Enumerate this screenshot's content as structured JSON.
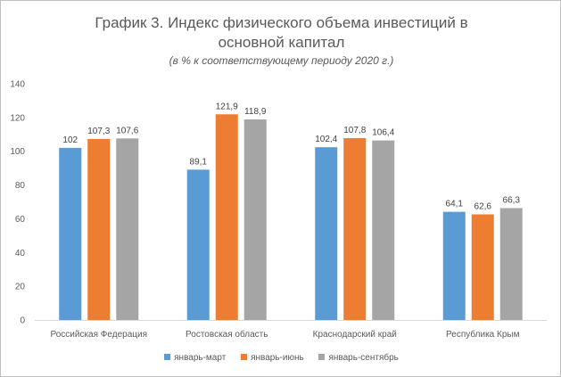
{
  "chart_data": {
    "type": "bar",
    "title_line1": "График 3. Индекс физического объема инвестиций в",
    "title_line2": "основной капитал",
    "subtitle": "(в % к соответствующему периоду 2020 г.)",
    "xlabel": "",
    "ylabel": "",
    "ylim": [
      0,
      140
    ],
    "yticks": [
      "0",
      "20",
      "40",
      "60",
      "80",
      "100",
      "120",
      "140"
    ],
    "grid": false,
    "legend_position": "bottom",
    "categories": [
      "Российская Федерация",
      "Ростовская область",
      "Краснодарский край",
      "Республика Крым"
    ],
    "series": [
      {
        "name": "январь-март",
        "color": "#5b9bd5",
        "values": [
          102,
          89.1,
          102.4,
          64.1
        ],
        "labels": [
          "102",
          "89,1",
          "102,4",
          "64,1"
        ]
      },
      {
        "name": "январь-июнь",
        "color": "#ed7d31",
        "values": [
          107.3,
          121.9,
          107.8,
          62.6
        ],
        "labels": [
          "107,3",
          "121,9",
          "107,8",
          "62,6"
        ]
      },
      {
        "name": "январь-сентябрь",
        "color": "#a5a5a5",
        "values": [
          107.6,
          118.9,
          106.4,
          66.3
        ],
        "labels": [
          "107,6",
          "118,9",
          "106,4",
          "66,3"
        ]
      }
    ]
  }
}
